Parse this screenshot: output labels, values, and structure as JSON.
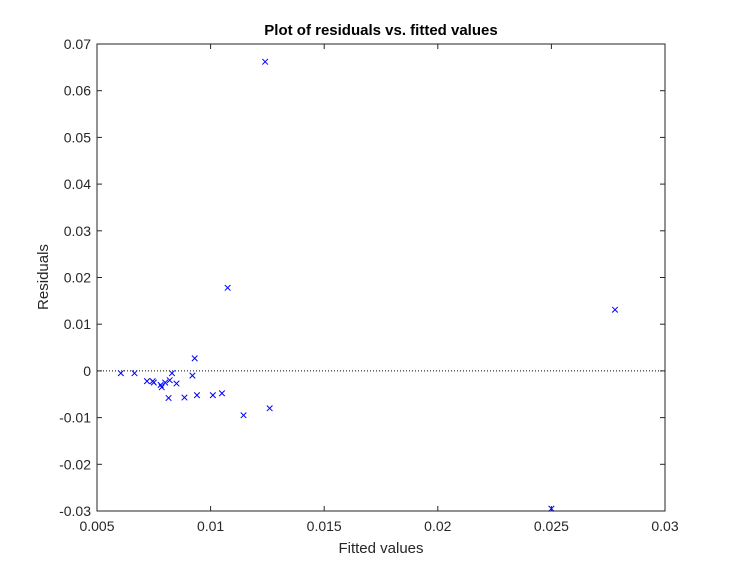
{
  "chart_data": {
    "type": "scatter",
    "title": "Plot of residuals vs. fitted values",
    "xlabel": "Fitted values",
    "ylabel": "Residuals",
    "xlim": [
      0.005,
      0.03
    ],
    "ylim": [
      -0.03,
      0.07
    ],
    "x_ticks": [
      "0.005",
      "0.01",
      "0.015",
      "0.02",
      "0.025",
      "0.03"
    ],
    "y_ticks": [
      "-0.03",
      "-0.02",
      "-0.01",
      "0",
      "0.01",
      "0.02",
      "0.03",
      "0.04",
      "0.05",
      "0.06",
      "0.07"
    ],
    "grid": false,
    "reference_line": {
      "y": 0,
      "style": "dotted",
      "color": "#000000"
    },
    "marker": {
      "shape": "x",
      "color": "#0000ff"
    },
    "points": [
      {
        "x": 0.00605,
        "y": -0.0005
      },
      {
        "x": 0.00665,
        "y": -0.0005
      },
      {
        "x": 0.0072,
        "y": -0.0022
      },
      {
        "x": 0.00745,
        "y": -0.0022
      },
      {
        "x": 0.0075,
        "y": -0.0025
      },
      {
        "x": 0.0078,
        "y": -0.003
      },
      {
        "x": 0.00785,
        "y": -0.0035
      },
      {
        "x": 0.008,
        "y": -0.0025
      },
      {
        "x": 0.00815,
        "y": -0.0058
      },
      {
        "x": 0.0082,
        "y": -0.002
      },
      {
        "x": 0.0083,
        "y": -0.0005
      },
      {
        "x": 0.0085,
        "y": -0.0027
      },
      {
        "x": 0.00885,
        "y": -0.0057
      },
      {
        "x": 0.0092,
        "y": -0.001
      },
      {
        "x": 0.0093,
        "y": 0.0027
      },
      {
        "x": 0.0094,
        "y": -0.0052
      },
      {
        "x": 0.0101,
        "y": -0.0052
      },
      {
        "x": 0.0105,
        "y": -0.0048
      },
      {
        "x": 0.01075,
        "y": 0.0178
      },
      {
        "x": 0.01145,
        "y": -0.0095
      },
      {
        "x": 0.0124,
        "y": 0.0662
      },
      {
        "x": 0.0126,
        "y": -0.008
      },
      {
        "x": 0.025,
        "y": -0.0295
      },
      {
        "x": 0.0278,
        "y": 0.0131
      }
    ]
  }
}
